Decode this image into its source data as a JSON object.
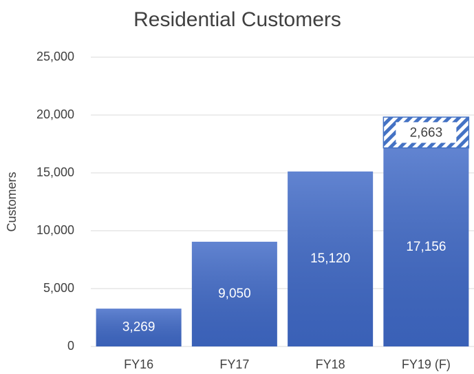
{
  "chart_data": {
    "type": "stacked_bar",
    "title": "Residential Customers",
    "y_label": "Customers",
    "categories": [
      "FY16",
      "FY17",
      "FY18",
      "FY19 (F)"
    ],
    "series": [
      {
        "color": "#3f69c7",
        "values": [
          3269,
          9050,
          15120,
          17156
        ],
        "value_labels": [
          "3,269",
          "9,050",
          "15,120",
          "17,156"
        ]
      },
      {
        "color": "#4472c4",
        "pattern": "hatch",
        "values": [
          null,
          null,
          null,
          2663
        ],
        "value_labels": [
          null,
          null,
          null,
          "2,663"
        ]
      }
    ],
    "ylim": [
      0,
      25000
    ],
    "yticks": [
      0,
      {
        "value": 5000,
        "label": "5,000"
      },
      {
        "value": 10000,
        "label": "10,000"
      },
      {
        "value": 15000,
        "label": "15,000"
      },
      {
        "value": 20000,
        "label": "20,000"
      },
      {
        "value": 25000,
        "label": "25,000"
      }
    ],
    "grid": true
  }
}
